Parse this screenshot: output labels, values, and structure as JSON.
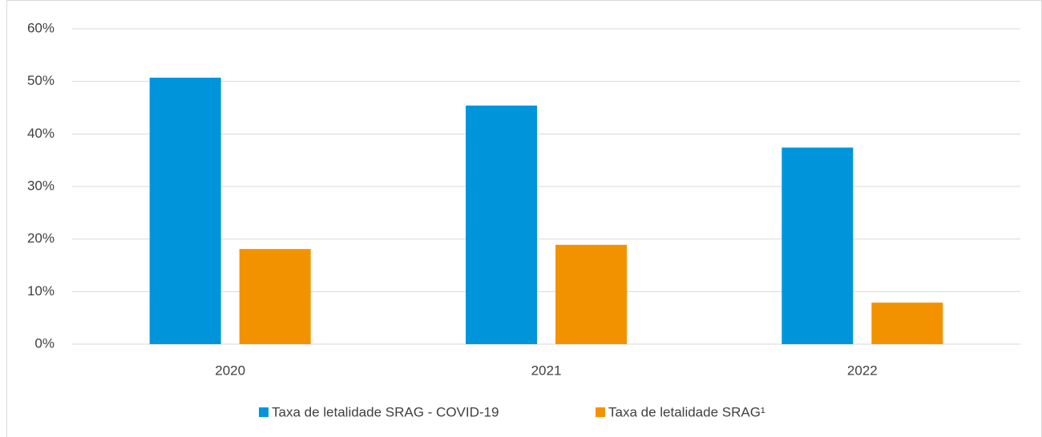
{
  "chart_data": {
    "type": "bar",
    "categories": [
      "2020",
      "2021",
      "2022"
    ],
    "series": [
      {
        "name": "Taxa de letalidade SRAG - COVID-19",
        "color": "#0095db",
        "values": [
          50.7,
          45.4,
          37.4
        ]
      },
      {
        "name": "Taxa de letalidade SRAG¹",
        "color": "#f39200",
        "values": [
          18.1,
          18.9,
          7.9
        ]
      }
    ],
    "ylim": [
      0,
      60
    ],
    "yticks": [
      {
        "value": 0,
        "label": "0%"
      },
      {
        "value": 10,
        "label": "10%"
      },
      {
        "value": 20,
        "label": "20%"
      },
      {
        "value": 30,
        "label": "30%"
      },
      {
        "value": 40,
        "label": "40%"
      },
      {
        "value": 50,
        "label": "50%"
      },
      {
        "value": 60,
        "label": "60%"
      }
    ],
    "grid": true,
    "legend": "bottom"
  }
}
